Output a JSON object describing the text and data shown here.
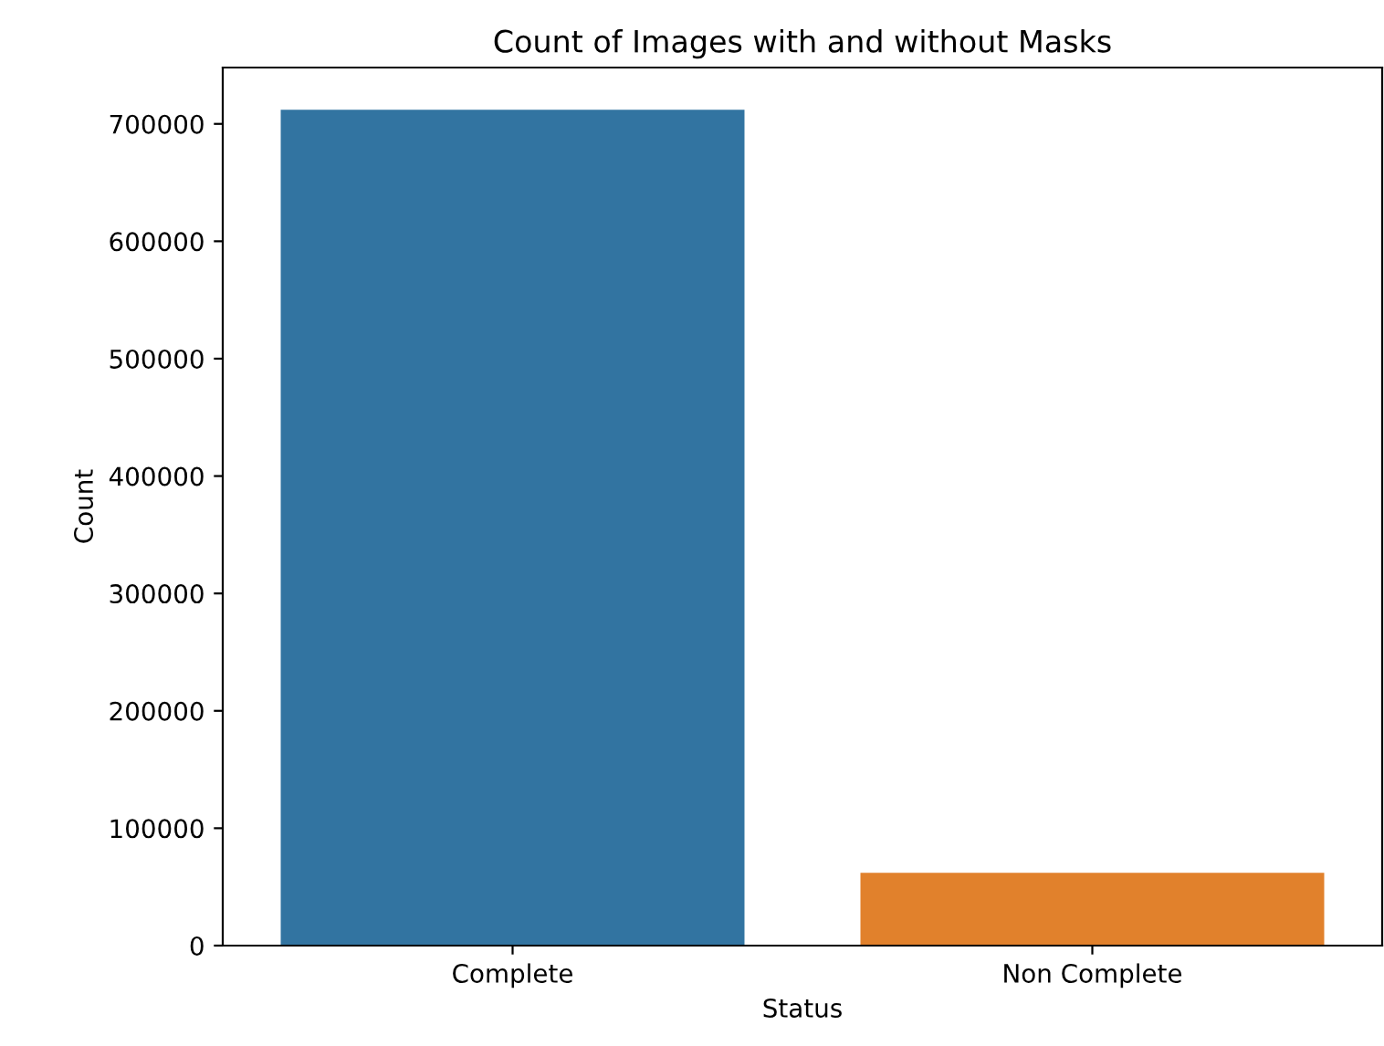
{
  "chart_data": {
    "type": "bar",
    "title": "Count of Images with and without Masks",
    "xlabel": "Status",
    "ylabel": "Count",
    "categories": [
      "Complete",
      "Non Complete"
    ],
    "values": [
      712000,
      62000
    ],
    "colors": [
      "#3274a1",
      "#e1812c"
    ],
    "ylim": [
      0,
      748000
    ],
    "yticks": [
      0,
      100000,
      200000,
      300000,
      400000,
      500000,
      600000,
      700000
    ],
    "grid": false
  }
}
